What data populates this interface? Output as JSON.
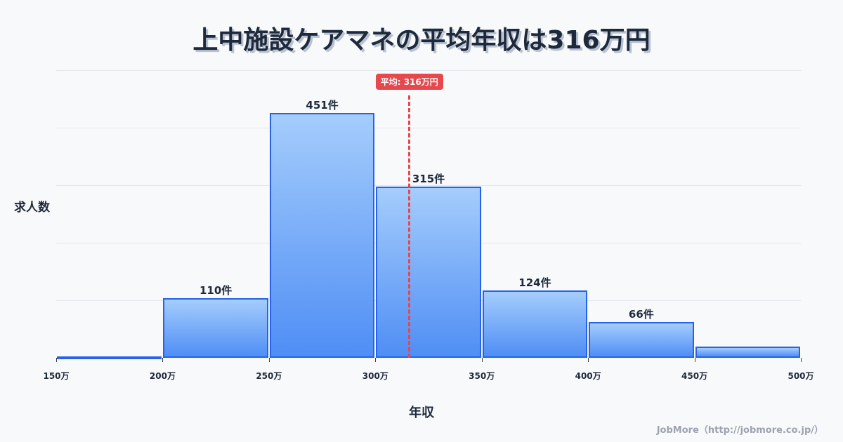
{
  "header": {
    "title": "上中施設ケアマネの平均年収は316万円"
  },
  "chart_data": {
    "type": "bar",
    "title": "上中施設ケアマネの平均年収は316万円",
    "xlabel": "年収",
    "ylabel": "求人数",
    "categories": [
      "150-200万",
      "200-250万",
      "250-300万",
      "300-350万",
      "350-400万",
      "400-450万",
      "450-500万"
    ],
    "bin_edges": [
      150,
      200,
      250,
      300,
      350,
      400,
      450,
      500
    ],
    "x_tick_labels": [
      "150万",
      "200万",
      "250万",
      "300万",
      "350万",
      "400万",
      "450万",
      "500万"
    ],
    "values": [
      1,
      110,
      451,
      315,
      124,
      66,
      21
    ],
    "value_labels": [
      "",
      "110件",
      "451件",
      "315件",
      "124件",
      "66件",
      ""
    ],
    "mean": 316,
    "mean_label": "平均: 316万円",
    "xlim": [
      150,
      500
    ],
    "ylim": [
      0,
      530
    ],
    "grid": true,
    "grid_lines": 5,
    "legend": "none",
    "colors": {
      "bar_fill_top": "#a5cdfc",
      "bar_fill_bottom": "#4f8ef5",
      "bar_border": "#2563eb",
      "mean_line": "#e5484d"
    }
  },
  "footer": {
    "credit": "JobMore（http://jobmore.co.jp/）"
  }
}
